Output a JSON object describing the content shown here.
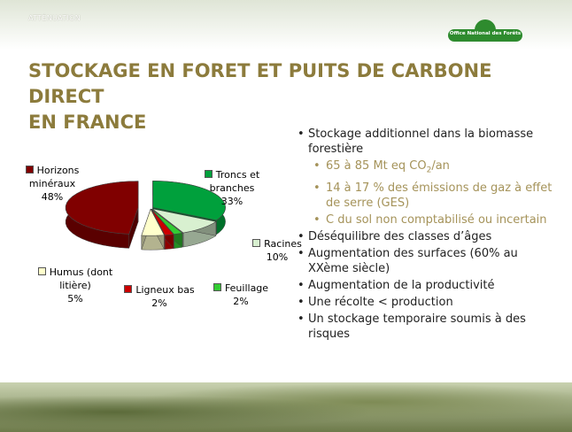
{
  "header": {
    "section": "ATTÉNUATION",
    "logo": "Office National des Forêts"
  },
  "title": [
    "STOCKAGE EN FORET ET PUITS DE CARBONE DIRECT",
    "EN FRANCE"
  ],
  "chart_data": {
    "type": "pie",
    "categories": [
      "Troncs et branches",
      "Racines",
      "Feuillage",
      "Ligneux bas",
      "Humus (dont litière)",
      "Horizons minéraux"
    ],
    "values": [
      33,
      10,
      2,
      2,
      5,
      48
    ],
    "value_labels": [
      "33%",
      "10%",
      "2%",
      "2%",
      "5%",
      "48%"
    ],
    "colors": [
      "#00a03c",
      "#d8f0d0",
      "#33cc33",
      "#cc0000",
      "#ffffcc",
      "#800000"
    ]
  },
  "bullets": [
    {
      "text": "Stockage additionnel dans la biomasse forestière",
      "sub": [
        {
          "text": "65 à 85 Mt eq CO",
          "subscript": "2",
          "after": "/an"
        },
        {
          "text": "14 à 17 % des émissions de gaz à effet de serre (GES)"
        },
        {
          "text": "C du sol non comptabilisé ou incertain"
        }
      ]
    },
    {
      "text": "Déséquilibre des classes d’âges"
    },
    {
      "text": "Augmentation des surfaces (60% au XXème siècle)"
    },
    {
      "text": "Augmentation de la productivité"
    },
    {
      "text": "Une récolte < production"
    },
    {
      "text": "Un stockage temporaire soumis à des risques"
    }
  ]
}
